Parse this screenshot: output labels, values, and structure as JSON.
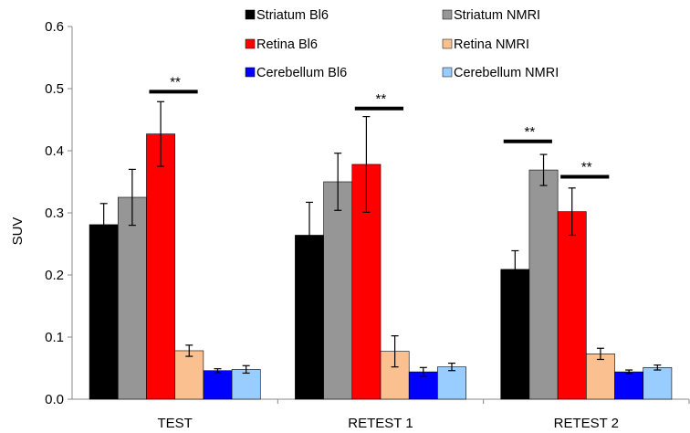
{
  "chart_data": {
    "type": "bar",
    "title": "",
    "xlabel": "",
    "ylabel": "SUV",
    "ylim": [
      0,
      0.6
    ],
    "yticks": [
      "0.0",
      "0.1",
      "0.2",
      "0.3",
      "0.4",
      "0.5",
      "0.6"
    ],
    "categories": [
      "TEST",
      "RETEST 1",
      "RETEST 2"
    ],
    "grid": false,
    "legend_position": "top",
    "series": [
      {
        "name": "Striatum Bl6",
        "color": "#000000",
        "values": [
          0.281,
          0.264,
          0.209
        ],
        "errors": [
          0.034,
          0.053,
          0.03
        ]
      },
      {
        "name": "Striatum NMRI",
        "color": "#969696",
        "values": [
          0.325,
          0.35,
          0.369
        ],
        "errors": [
          0.045,
          0.046,
          0.025
        ]
      },
      {
        "name": "Retina Bl6",
        "color": "#ff0000",
        "values": [
          0.427,
          0.378,
          0.302
        ],
        "errors": [
          0.052,
          0.077,
          0.038
        ]
      },
      {
        "name": "Retina NMRI",
        "color": "#fac090",
        "values": [
          0.078,
          0.077,
          0.073
        ],
        "errors": [
          0.009,
          0.025,
          0.009
        ]
      },
      {
        "name": "Cerebellum Bl6",
        "color": "#0000ff",
        "values": [
          0.046,
          0.044,
          0.044
        ],
        "errors": [
          0.003,
          0.007,
          0.003
        ]
      },
      {
        "name": "Cerebellum NMRI",
        "color": "#99ccff",
        "values": [
          0.048,
          0.052,
          0.051
        ],
        "errors": [
          0.006,
          0.006,
          0.004
        ]
      }
    ],
    "annotations": [
      {
        "text": "**",
        "group": 0,
        "from_series": 2,
        "to_series": 2,
        "y": 0.495
      },
      {
        "text": "**",
        "group": 1,
        "from_series": 2,
        "to_series": 2,
        "y": 0.468
      },
      {
        "text": "**",
        "group": 2,
        "from_series": 0,
        "to_series": 0,
        "y": 0.415
      },
      {
        "text": "**",
        "group": 2,
        "from_series": 2,
        "to_series": 2,
        "y": 0.358
      }
    ]
  }
}
